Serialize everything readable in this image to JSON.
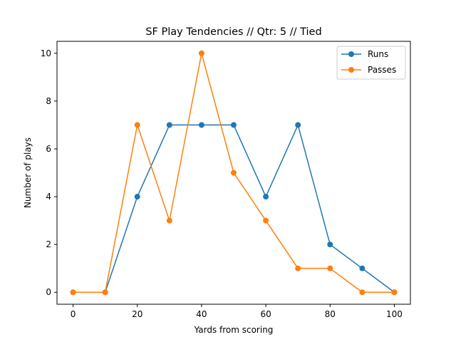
{
  "chart_data": {
    "type": "line",
    "title": "SF Play Tendencies // Qtr: 5 // Tied",
    "xlabel": "Yards from scoring",
    "ylabel": "Number of plays",
    "x": [
      0,
      10,
      20,
      30,
      40,
      50,
      60,
      70,
      80,
      90,
      100
    ],
    "series": [
      {
        "name": "Runs",
        "color": "#1f77b4",
        "values": [
          0,
          0,
          4,
          7,
          7,
          7,
          4,
          7,
          2,
          1,
          0
        ]
      },
      {
        "name": "Passes",
        "color": "#ff7f0e",
        "values": [
          0,
          0,
          7,
          3,
          10,
          5,
          3,
          1,
          1,
          0,
          0
        ]
      }
    ],
    "xlim": [
      -5,
      105
    ],
    "ylim": [
      -0.5,
      10.5
    ],
    "xticks": [
      0,
      20,
      40,
      60,
      80,
      100
    ],
    "yticks": [
      0,
      2,
      4,
      6,
      8,
      10
    ],
    "grid": false,
    "legend_position": "top-right"
  }
}
